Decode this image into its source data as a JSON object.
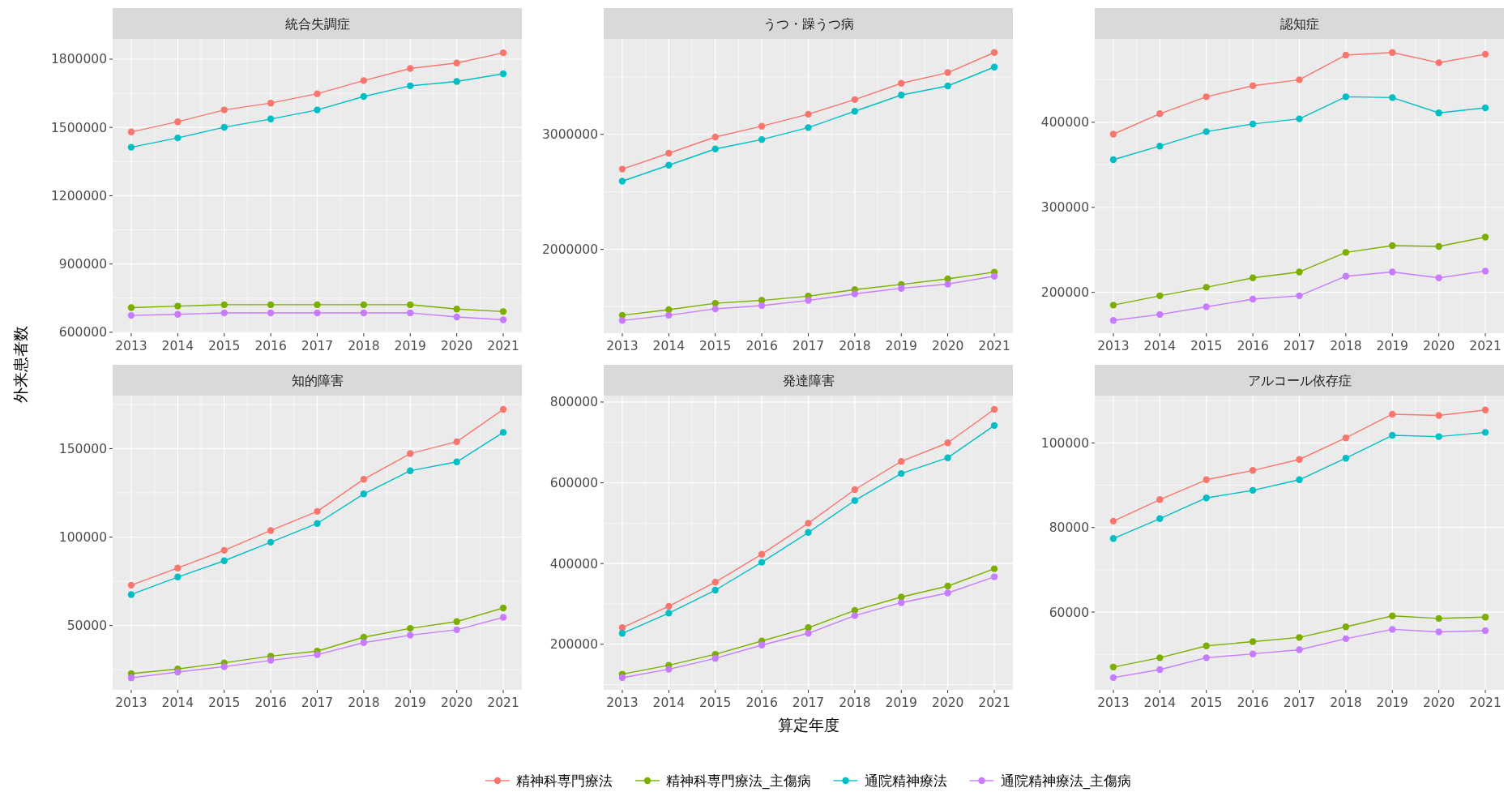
{
  "chart_data": [
    {
      "type": "line",
      "title": "統合失調症",
      "ylabel": "外来患者数",
      "categories": [
        "2013",
        "2014",
        "2015",
        "2016",
        "2017",
        "2018",
        "2019",
        "2020",
        "2021"
      ],
      "ylim": [
        596000,
        1889000
      ],
      "yticks": [
        600000,
        900000,
        1200000,
        1500000,
        1800000
      ],
      "grid": true,
      "marker": "circle",
      "legend": "bottom",
      "series": [
        {
          "name": "精神科専門療法",
          "color": "#f8766d",
          "values": [
            1480000,
            1525000,
            1577000,
            1607000,
            1648000,
            1706000,
            1759000,
            1783000,
            1828000
          ]
        },
        {
          "name": "精神科専門療法_主傷病",
          "color": "#7cae00",
          "values": [
            708000,
            715000,
            721000,
            721000,
            721000,
            721000,
            721000,
            702000,
            691000
          ]
        },
        {
          "name": "通院精神療法",
          "color": "#00bfc4",
          "values": [
            1413000,
            1454000,
            1501000,
            1537000,
            1577000,
            1636000,
            1683000,
            1702000,
            1736000
          ]
        },
        {
          "name": "通院精神療法_主傷病",
          "color": "#c77cff",
          "values": [
            674000,
            679000,
            685000,
            685000,
            685000,
            685000,
            685000,
            667000,
            655000
          ]
        }
      ]
    },
    {
      "type": "line",
      "title": "うつ・躁うつ病",
      "categories": [
        "2013",
        "2014",
        "2015",
        "2016",
        "2017",
        "2018",
        "2019",
        "2020",
        "2021"
      ],
      "ylim": [
        1271000,
        3830000
      ],
      "yticks": [
        2000000,
        3000000
      ],
      "grid": true,
      "marker": "circle",
      "legend": "bottom",
      "series": [
        {
          "name": "精神科専門療法",
          "color": "#f8766d",
          "values": [
            2698000,
            2836000,
            2977000,
            3071000,
            3175000,
            3302000,
            3444000,
            3537000,
            3712000
          ]
        },
        {
          "name": "精神科専門療法_主傷病",
          "color": "#7cae00",
          "values": [
            1427000,
            1475000,
            1531000,
            1556000,
            1593000,
            1650000,
            1695000,
            1743000,
            1802000
          ]
        },
        {
          "name": "通院精神療法",
          "color": "#00bfc4",
          "values": [
            2593000,
            2732000,
            2873000,
            2955000,
            3059000,
            3201000,
            3342000,
            3421000,
            3585000
          ]
        },
        {
          "name": "通院精神療法_主傷病",
          "color": "#c77cff",
          "values": [
            1381000,
            1427000,
            1483000,
            1511000,
            1556000,
            1613000,
            1661000,
            1698000,
            1766000
          ]
        }
      ]
    },
    {
      "type": "line",
      "title": "認知症",
      "categories": [
        "2013",
        "2014",
        "2015",
        "2016",
        "2017",
        "2018",
        "2019",
        "2020",
        "2021"
      ],
      "ylim": [
        152000,
        498000
      ],
      "yticks": [
        200000,
        300000,
        400000
      ],
      "grid": true,
      "marker": "circle",
      "legend": "bottom",
      "series": [
        {
          "name": "精神科専門療法",
          "color": "#f8766d",
          "values": [
            386000,
            410000,
            430000,
            443000,
            450000,
            479000,
            482000,
            470000,
            480000
          ]
        },
        {
          "name": "精神科専門療法_主傷病",
          "color": "#7cae00",
          "values": [
            185000,
            196000,
            206000,
            217000,
            224000,
            247000,
            255000,
            254000,
            265000
          ]
        },
        {
          "name": "通院精神療法",
          "color": "#00bfc4",
          "values": [
            356000,
            372000,
            389000,
            398000,
            404000,
            430000,
            429000,
            411000,
            417000
          ]
        },
        {
          "name": "通院精神療法_主傷病",
          "color": "#c77cff",
          "values": [
            167000,
            174000,
            183000,
            192000,
            196000,
            219000,
            224000,
            217000,
            225000
          ]
        }
      ]
    },
    {
      "type": "line",
      "title": "知的障害",
      "categories": [
        "2013",
        "2014",
        "2015",
        "2016",
        "2017",
        "2018",
        "2019",
        "2020",
        "2021"
      ],
      "ylim": [
        13600,
        180000
      ],
      "yticks": [
        50000,
        100000,
        150000
      ],
      "grid": true,
      "marker": "circle",
      "legend": "bottom",
      "series": [
        {
          "name": "精神科専門療法",
          "color": "#f8766d",
          "values": [
            72800,
            82500,
            92500,
            103700,
            114500,
            132700,
            147200,
            153900,
            172200
          ]
        },
        {
          "name": "精神科専門療法_主傷病",
          "color": "#7cae00",
          "values": [
            22800,
            25400,
            28900,
            32700,
            35500,
            43400,
            48400,
            52200,
            59900
          ]
        },
        {
          "name": "通院精神療法",
          "color": "#00bfc4",
          "values": [
            67500,
            77400,
            86600,
            97100,
            107700,
            124400,
            137500,
            142500,
            159200
          ]
        },
        {
          "name": "通院精神療法_主傷病",
          "color": "#c77cff",
          "values": [
            20400,
            23700,
            26700,
            30300,
            33500,
            40300,
            44500,
            47600,
            54600
          ]
        }
      ]
    },
    {
      "type": "line",
      "title": "発達障害",
      "xlabel": "算定年度",
      "categories": [
        "2013",
        "2014",
        "2015",
        "2016",
        "2017",
        "2018",
        "2019",
        "2020",
        "2021"
      ],
      "ylim": [
        87000,
        816000
      ],
      "yticks": [
        200000,
        400000,
        600000,
        800000
      ],
      "grid": true,
      "marker": "circle",
      "legend": "bottom",
      "series": [
        {
          "name": "精神科専門療法",
          "color": "#f8766d",
          "values": [
            241000,
            294000,
            354000,
            423000,
            500000,
            583000,
            653000,
            699000,
            782000
          ]
        },
        {
          "name": "精神科専門療法_主傷病",
          "color": "#7cae00",
          "values": [
            126000,
            148000,
            175000,
            208000,
            241000,
            284000,
            317000,
            344000,
            387000
          ]
        },
        {
          "name": "通院精神療法",
          "color": "#00bfc4",
          "values": [
            227000,
            277000,
            334000,
            403000,
            477000,
            556000,
            623000,
            662000,
            742000
          ]
        },
        {
          "name": "通院精神療法_主傷病",
          "color": "#c77cff",
          "values": [
            117000,
            138000,
            165000,
            198000,
            227000,
            271000,
            303000,
            327000,
            367000
          ]
        }
      ]
    },
    {
      "type": "line",
      "title": "アルコール依存症",
      "categories": [
        "2013",
        "2014",
        "2015",
        "2016",
        "2017",
        "2018",
        "2019",
        "2020",
        "2021"
      ],
      "ylim": [
        41600,
        111200
      ],
      "yticks": [
        60000,
        80000,
        100000
      ],
      "grid": true,
      "marker": "circle",
      "legend": "bottom",
      "series": [
        {
          "name": "精神科専門療法",
          "color": "#f8766d",
          "values": [
            81500,
            86600,
            91300,
            93500,
            96100,
            101200,
            106800,
            106500,
            107800
          ]
        },
        {
          "name": "精神科専門療法_主傷病",
          "color": "#7cae00",
          "values": [
            47000,
            49200,
            52000,
            53000,
            54000,
            56500,
            59100,
            58500,
            58800
          ]
        },
        {
          "name": "通院精神療法",
          "color": "#00bfc4",
          "values": [
            77400,
            82100,
            87000,
            88800,
            91300,
            96400,
            101800,
            101500,
            102500
          ]
        },
        {
          "name": "通院精神療法_主傷病",
          "color": "#c77cff",
          "values": [
            44500,
            46400,
            49200,
            50100,
            51100,
            53700,
            55900,
            55300,
            55600
          ]
        }
      ]
    }
  ]
}
